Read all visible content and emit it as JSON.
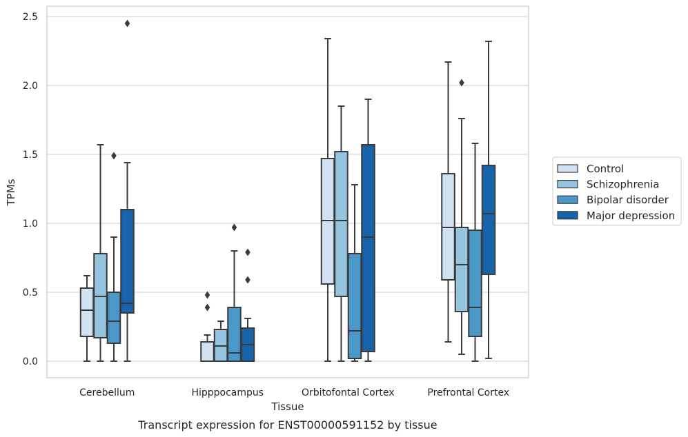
{
  "chart_data": {
    "type": "boxplot",
    "title": "",
    "caption": "Transcript expression for ENST00000591152 by tissue",
    "xlabel": "Tissue",
    "ylabel": "TPMs",
    "ylim": [
      -0.12,
      2.57
    ],
    "yticks": [
      0.0,
      0.5,
      1.0,
      1.5,
      2.0,
      2.5
    ],
    "ytick_labels": [
      "0.0",
      "0.5",
      "1.0",
      "1.5",
      "2.0",
      "2.5"
    ],
    "grid": "horizontal",
    "legend_position": "right",
    "categories": [
      "Cerebellum",
      "Hipppocampus",
      "Orbitofontal Cortex",
      "Prefrontal Cortex"
    ],
    "series": [
      {
        "name": "Control",
        "color": "#d0e1f2",
        "boxes": [
          {
            "whisker_low": 0.0,
            "q1": 0.18,
            "median": 0.37,
            "q3": 0.53,
            "whisker_high": 0.62,
            "outliers": []
          },
          {
            "whisker_low": 0.0,
            "q1": 0.0,
            "median": 0.0,
            "q3": 0.14,
            "whisker_high": 0.19,
            "outliers": [
              0.39,
              0.48
            ]
          },
          {
            "whisker_low": 0.0,
            "q1": 0.56,
            "median": 1.02,
            "q3": 1.47,
            "whisker_high": 2.34,
            "outliers": []
          },
          {
            "whisker_low": 0.14,
            "q1": 0.59,
            "median": 0.97,
            "q3": 1.36,
            "whisker_high": 2.17,
            "outliers": []
          }
        ]
      },
      {
        "name": "Schizophrenia",
        "color": "#94c4df",
        "boxes": [
          {
            "whisker_low": 0.0,
            "q1": 0.17,
            "median": 0.47,
            "q3": 0.78,
            "whisker_high": 1.57,
            "outliers": []
          },
          {
            "whisker_low": 0.0,
            "q1": 0.0,
            "median": 0.11,
            "q3": 0.23,
            "whisker_high": 0.29,
            "outliers": []
          },
          {
            "whisker_low": 0.0,
            "q1": 0.47,
            "median": 1.02,
            "q3": 1.52,
            "whisker_high": 1.85,
            "outliers": []
          },
          {
            "whisker_low": 0.05,
            "q1": 0.36,
            "median": 0.7,
            "q3": 0.97,
            "whisker_high": 1.76,
            "outliers": [
              2.02
            ]
          }
        ]
      },
      {
        "name": "Bipolar disorder",
        "color": "#4a98c9",
        "boxes": [
          {
            "whisker_low": 0.0,
            "q1": 0.13,
            "median": 0.29,
            "q3": 0.5,
            "whisker_high": 0.9,
            "outliers": [
              1.49
            ]
          },
          {
            "whisker_low": 0.0,
            "q1": 0.0,
            "median": 0.06,
            "q3": 0.39,
            "whisker_high": 0.8,
            "outliers": [
              0.97
            ]
          },
          {
            "whisker_low": 0.0,
            "q1": 0.02,
            "median": 0.22,
            "q3": 0.78,
            "whisker_high": 1.28,
            "outliers": []
          },
          {
            "whisker_low": 0.0,
            "q1": 0.18,
            "median": 0.39,
            "q3": 0.95,
            "whisker_high": 1.58,
            "outliers": []
          }
        ]
      },
      {
        "name": "Major depression",
        "color": "#1764ab",
        "boxes": [
          {
            "whisker_low": 0.0,
            "q1": 0.35,
            "median": 0.42,
            "q3": 1.1,
            "whisker_high": 1.44,
            "outliers": [
              2.45
            ]
          },
          {
            "whisker_low": 0.0,
            "q1": 0.0,
            "median": 0.12,
            "q3": 0.24,
            "whisker_high": 0.31,
            "outliers": [
              0.59,
              0.79
            ]
          },
          {
            "whisker_low": 0.0,
            "q1": 0.07,
            "median": 0.9,
            "q3": 1.57,
            "whisker_high": 1.9,
            "outliers": []
          },
          {
            "whisker_low": 0.02,
            "q1": 0.63,
            "median": 1.07,
            "q3": 1.42,
            "whisker_high": 2.32,
            "outliers": []
          }
        ]
      }
    ]
  }
}
